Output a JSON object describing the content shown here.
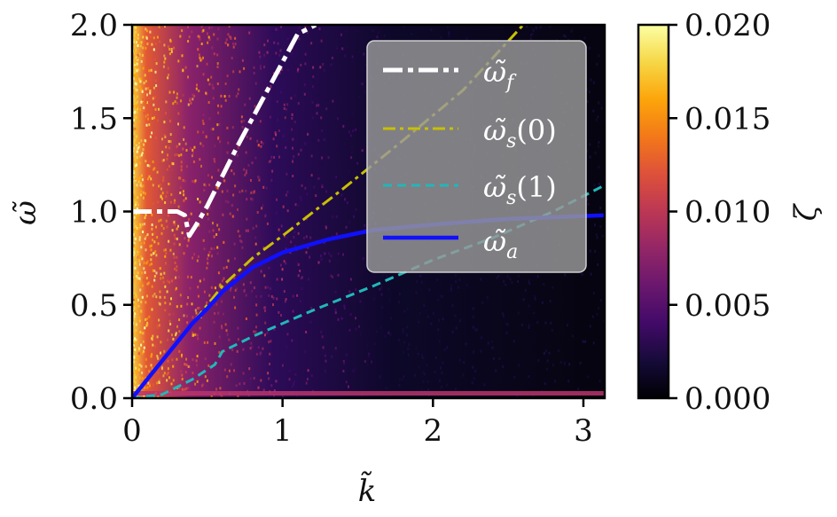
{
  "chart_data": {
    "type": "heatmap",
    "title": "",
    "xlabel": "k̃",
    "ylabel": "ω̃",
    "xlim": [
      0,
      3.14159
    ],
    "ylim": [
      0,
      2.0
    ],
    "x_ticks": [
      "0",
      "1",
      "2",
      "3"
    ],
    "y_ticks": [
      "0.0",
      "0.5",
      "1.0",
      "1.5",
      "2.0"
    ],
    "colorbar": {
      "label": "ζ",
      "range": [
        0,
        0.02
      ],
      "ticks": [
        "0.000",
        "0.005",
        "0.010",
        "0.015",
        "0.020"
      ],
      "colormap": "inferno"
    },
    "legend_position": "upper-right",
    "series": [
      {
        "name": "ω̃_f",
        "color": "#ffffff",
        "style": "dash-dot",
        "x": [
          0.0,
          0.1,
          0.2,
          0.3,
          0.35,
          0.38,
          0.42,
          0.5,
          0.7,
          0.9,
          1.1,
          1.22
        ],
        "y": [
          1.0,
          1.0,
          1.0,
          1.0,
          0.98,
          0.87,
          0.92,
          1.03,
          1.35,
          1.65,
          1.95,
          2.0
        ]
      },
      {
        "name": "ω̃_s(0)",
        "color": "#c8c000",
        "style": "dash-dot",
        "x": [
          0.0,
          0.3,
          0.6,
          0.8,
          1.0,
          1.4,
          1.8,
          2.2,
          2.6
        ],
        "y": [
          0.0,
          0.3,
          0.6,
          0.75,
          0.87,
          1.12,
          1.38,
          1.65,
          2.0
        ]
      },
      {
        "name": "ω̃_s(1)",
        "color": "#20b8b8",
        "style": "dashed",
        "x": [
          0.0,
          0.2,
          0.4,
          0.55,
          0.6,
          0.8,
          1.2,
          1.6,
          2.0,
          2.4,
          2.8,
          3.14
        ],
        "y": [
          0.0,
          0.02,
          0.1,
          0.18,
          0.25,
          0.33,
          0.47,
          0.6,
          0.74,
          0.86,
          1.0,
          1.14
        ]
      },
      {
        "name": "ω̃_a",
        "color": "#1010ff",
        "style": "solid",
        "x": [
          0.0,
          0.1,
          0.2,
          0.3,
          0.4,
          0.5,
          0.6,
          0.8,
          1.0,
          1.3,
          1.6,
          2.0,
          2.5,
          3.14
        ],
        "y": [
          0.0,
          0.1,
          0.2,
          0.3,
          0.4,
          0.48,
          0.57,
          0.7,
          0.78,
          0.85,
          0.9,
          0.93,
          0.96,
          0.98
        ]
      }
    ]
  },
  "legend": {
    "items": [
      {
        "label": "ω̃",
        "sub": "f"
      },
      {
        "label": "ω̃",
        "sub": "s",
        "suffix": "(0)"
      },
      {
        "label": "ω̃",
        "sub": "s",
        "suffix": "(1)"
      },
      {
        "label": "ω̃",
        "sub": "a"
      }
    ]
  }
}
